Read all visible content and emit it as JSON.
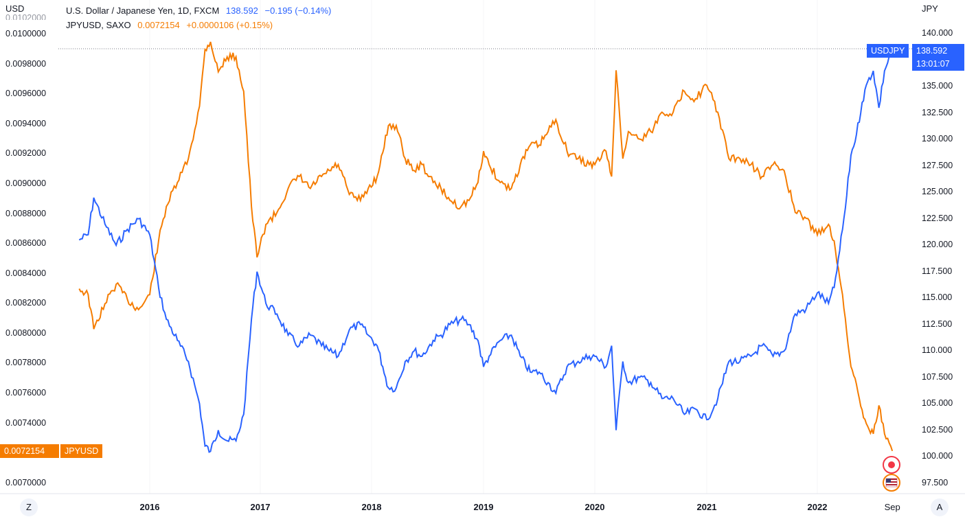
{
  "legend": {
    "series1": {
      "name": "U.S. Dollar / Japanese Yen, 1D, FXCM",
      "value": "138.592",
      "change": "−0.195 (−0.14%)"
    },
    "series2": {
      "name": "JPYUSD, SAXO",
      "value": "0.0072154",
      "change": "+0.0000106 (+0.15%)"
    }
  },
  "left_axis_unit": "USD",
  "right_axis_unit": "JPY",
  "left_axis_ticks": [
    "0.0100000",
    "0.0098000",
    "0.0096000",
    "0.0094000",
    "0.0092000",
    "0.0090000",
    "0.0088000",
    "0.0086000",
    "0.0084000",
    "0.0082000",
    "0.0080000",
    "0.0078000",
    "0.0076000",
    "0.0074000",
    "0.0070000"
  ],
  "left_axis_top_partial": "0.0102000",
  "right_axis_ticks": [
    "140.000",
    "137.500",
    "135.000",
    "132.500",
    "130.000",
    "127.500",
    "125.000",
    "122.500",
    "120.000",
    "117.500",
    "115.000",
    "112.500",
    "110.000",
    "107.500",
    "105.000",
    "102.500",
    "100.000",
    "97.500"
  ],
  "x_axis_ticks": [
    "2016",
    "2017",
    "2018",
    "2019",
    "2020",
    "2021",
    "2022",
    "Sep"
  ],
  "price_tags": {
    "usdjpy_label": "USDJPY",
    "usdjpy_value": "138.592",
    "usdjpy_countdown": "13:01:07",
    "jpyusd_value": "0.0072154",
    "jpyusd_label": "JPYUSD"
  },
  "buttons": {
    "left": "Z",
    "right": "A"
  },
  "colors": {
    "usdjpy": "#2962ff",
    "jpyusd": "#f57c00",
    "grid": "#e0e3eb"
  },
  "chart_data": {
    "type": "line",
    "x_axis": "time",
    "x_range": [
      "2015-05",
      "2022-09"
    ],
    "y_left": {
      "unit": "USD",
      "range": [
        0.00693,
        0.01023
      ],
      "series": "JPYUSD"
    },
    "y_right": {
      "unit": "JPY",
      "range": [
        96.5,
        143.2
      ],
      "series": "USDJPY"
    },
    "series": [
      {
        "name": "U.S. Dollar / Japanese Yen, 1D, FXCM",
        "axis": "right",
        "color": "#2962ff",
        "x": [
          2015.37,
          2015.45,
          2015.5,
          2015.6,
          2015.7,
          2015.8,
          2015.9,
          2016.0,
          2016.08,
          2016.15,
          2016.25,
          2016.35,
          2016.45,
          2016.5,
          2016.55,
          2016.62,
          2016.7,
          2016.78,
          2016.85,
          2016.92,
          2016.97,
          2017.05,
          2017.15,
          2017.25,
          2017.35,
          2017.45,
          2017.55,
          2017.62,
          2017.7,
          2017.8,
          2017.9,
          2017.97,
          2018.05,
          2018.1,
          2018.15,
          2018.22,
          2018.3,
          2018.38,
          2018.45,
          2018.55,
          2018.62,
          2018.7,
          2018.8,
          2018.87,
          2018.95,
          2019.0,
          2019.05,
          2019.15,
          2019.25,
          2019.33,
          2019.42,
          2019.5,
          2019.58,
          2019.65,
          2019.75,
          2019.85,
          2019.95,
          2020.0,
          2020.1,
          2020.15,
          2020.19,
          2020.25,
          2020.3,
          2020.4,
          2020.5,
          2020.6,
          2020.7,
          2020.8,
          2020.9,
          2021.0,
          2021.1,
          2021.2,
          2021.3,
          2021.4,
          2021.5,
          2021.6,
          2021.7,
          2021.8,
          2021.9,
          2022.0,
          2022.1,
          2022.15,
          2022.2,
          2022.25,
          2022.3,
          2022.35,
          2022.4,
          2022.45,
          2022.5,
          2022.55,
          2022.6,
          2022.67
        ],
        "y": [
          120.5,
          121.0,
          124.5,
          122.0,
          120.0,
          121.5,
          122.5,
          121.0,
          116.0,
          113.0,
          111.0,
          109.0,
          105.0,
          101.0,
          100.5,
          102.5,
          101.5,
          101.5,
          104.0,
          113.0,
          117.5,
          114.5,
          113.5,
          111.5,
          110.5,
          111.5,
          110.5,
          110.0,
          109.5,
          112.0,
          112.5,
          111.5,
          110.5,
          108.5,
          106.5,
          106.5,
          109.0,
          110.0,
          109.5,
          111.0,
          111.5,
          112.5,
          113.0,
          112.5,
          111.0,
          108.5,
          109.5,
          111.0,
          111.5,
          109.5,
          108.0,
          108.0,
          107.0,
          106.0,
          108.5,
          109.0,
          109.5,
          109.5,
          108.5,
          110.5,
          102.5,
          109.0,
          107.0,
          107.5,
          107.0,
          105.5,
          105.5,
          104.0,
          104.5,
          103.5,
          105.5,
          109.0,
          109.0,
          109.5,
          110.5,
          109.5,
          110.0,
          113.5,
          114.0,
          115.5,
          114.5,
          116.0,
          119.5,
          123.5,
          128.5,
          130.5,
          133.5,
          135.5,
          136.5,
          133.0,
          136.5,
          138.592
        ]
      },
      {
        "name": "JPYUSD, SAXO",
        "axis": "left",
        "color": "#f57c00",
        "x": [
          2015.37,
          2015.45,
          2015.5,
          2015.6,
          2015.7,
          2015.8,
          2015.9,
          2016.0,
          2016.08,
          2016.15,
          2016.25,
          2016.35,
          2016.45,
          2016.5,
          2016.55,
          2016.62,
          2016.7,
          2016.78,
          2016.85,
          2016.92,
          2016.97,
          2017.05,
          2017.15,
          2017.25,
          2017.35,
          2017.45,
          2017.55,
          2017.62,
          2017.7,
          2017.8,
          2017.9,
          2017.97,
          2018.05,
          2018.1,
          2018.15,
          2018.22,
          2018.3,
          2018.38,
          2018.45,
          2018.55,
          2018.62,
          2018.7,
          2018.8,
          2018.87,
          2018.95,
          2019.0,
          2019.05,
          2019.15,
          2019.25,
          2019.33,
          2019.42,
          2019.5,
          2019.58,
          2019.65,
          2019.75,
          2019.85,
          2019.95,
          2020.0,
          2020.1,
          2020.15,
          2020.19,
          2020.25,
          2020.3,
          2020.4,
          2020.5,
          2020.6,
          2020.7,
          2020.8,
          2020.9,
          2021.0,
          2021.1,
          2021.2,
          2021.3,
          2021.4,
          2021.5,
          2021.6,
          2021.7,
          2021.8,
          2021.9,
          2022.0,
          2022.1,
          2022.15,
          2022.2,
          2022.25,
          2022.3,
          2022.35,
          2022.4,
          2022.45,
          2022.5,
          2022.55,
          2022.6,
          2022.67
        ],
        "y": [
          0.0083,
          0.00826,
          0.00803,
          0.0082,
          0.00833,
          0.00823,
          0.00816,
          0.00826,
          0.00862,
          0.00885,
          0.00901,
          0.00917,
          0.00952,
          0.0099,
          0.00995,
          0.00975,
          0.00985,
          0.00985,
          0.00962,
          0.00885,
          0.00851,
          0.00873,
          0.00881,
          0.00897,
          0.00905,
          0.00897,
          0.00905,
          0.00909,
          0.00913,
          0.00893,
          0.00889,
          0.00897,
          0.00905,
          0.00921,
          0.00939,
          0.00939,
          0.00917,
          0.00909,
          0.00913,
          0.00901,
          0.00897,
          0.00889,
          0.00885,
          0.00889,
          0.00901,
          0.00922,
          0.00913,
          0.00901,
          0.00897,
          0.00913,
          0.00926,
          0.00926,
          0.00935,
          0.00943,
          0.00922,
          0.00917,
          0.00913,
          0.00913,
          0.00922,
          0.00905,
          0.00976,
          0.00917,
          0.00935,
          0.0093,
          0.00935,
          0.00948,
          0.00948,
          0.00962,
          0.00957,
          0.00966,
          0.00948,
          0.00917,
          0.00917,
          0.00913,
          0.00905,
          0.00913,
          0.00909,
          0.00881,
          0.00877,
          0.00866,
          0.00873,
          0.00862,
          0.00837,
          0.0081,
          0.00778,
          0.00766,
          0.00749,
          0.00738,
          0.00733,
          0.00752,
          0.00733,
          0.0072154
        ]
      }
    ]
  }
}
